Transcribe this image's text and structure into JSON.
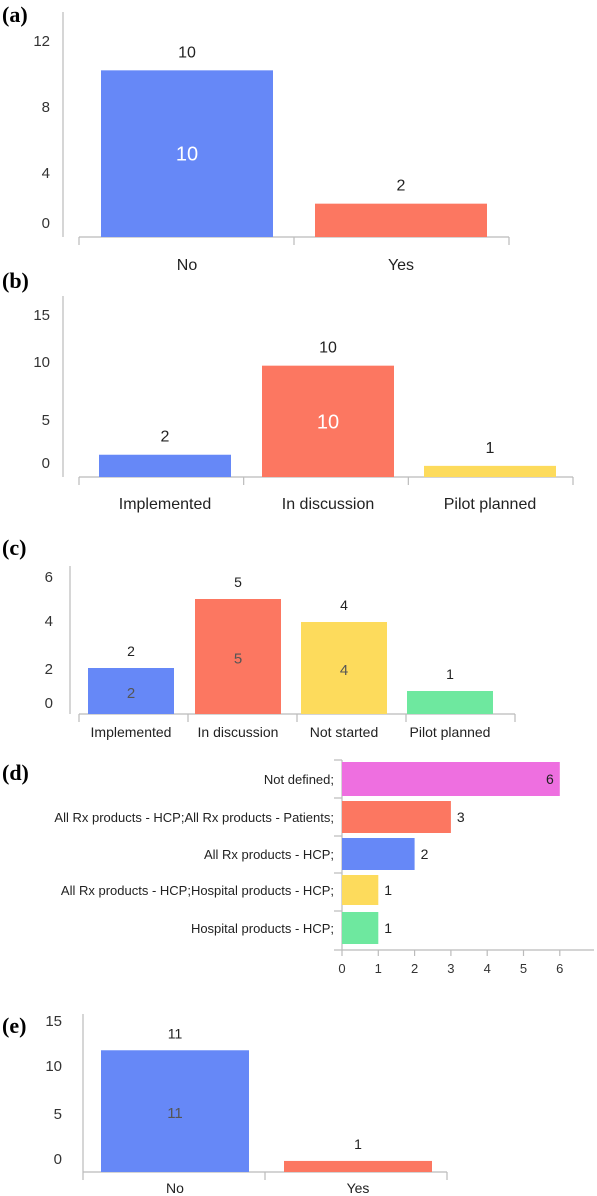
{
  "chart_data": [
    {
      "panel": "(a)",
      "type": "bar",
      "categories": [
        "No",
        "Yes"
      ],
      "values": [
        10,
        2
      ],
      "inner_labels": [
        "10",
        ""
      ],
      "colors": [
        "#6688f7",
        "#fc7761"
      ],
      "ticks": [
        "0",
        "4",
        "8",
        "12"
      ],
      "ylim": [
        0,
        12
      ],
      "grid": false,
      "legend": "none"
    },
    {
      "panel": "(b)",
      "type": "bar",
      "categories": [
        "Implemented",
        "In discussion",
        "Pilot planned"
      ],
      "values": [
        2,
        10,
        1
      ],
      "inner_labels": [
        "",
        "10",
        ""
      ],
      "colors": [
        "#6688f7",
        "#fc7761",
        "#fddb5c"
      ],
      "ticks": [
        "0",
        "5",
        "10",
        "15"
      ],
      "ylim": [
        0,
        15
      ],
      "grid": false,
      "legend": "none"
    },
    {
      "panel": "(c)",
      "type": "bar",
      "categories": [
        "Implemented",
        "In discussion",
        "Not started",
        "Pilot planned"
      ],
      "values": [
        2,
        5,
        4,
        1
      ],
      "inner_labels": [
        "2",
        "5",
        "4",
        ""
      ],
      "colors": [
        "#6688f7",
        "#fc7761",
        "#fddb5c",
        "#6ee89f"
      ],
      "ticks": [
        "0",
        "2",
        "4",
        "6"
      ],
      "ylim": [
        0,
        6
      ],
      "grid": false,
      "legend": "none"
    },
    {
      "panel": "(d)",
      "type": "bar",
      "orientation": "horizontal",
      "categories": [
        "Not defined;",
        "All Rx products - HCP;All Rx products - Patients;",
        "All Rx products - HCP;",
        "All Rx products - HCP;Hospital products - HCP;",
        "Hospital products - HCP;"
      ],
      "values": [
        6,
        3,
        2,
        1,
        1
      ],
      "colors": [
        "#ee6fe0",
        "#fc7761",
        "#6688f7",
        "#fddb5c",
        "#6ee89f"
      ],
      "ticks": [
        "0",
        "1",
        "2",
        "3",
        "4",
        "5",
        "6"
      ],
      "xlim": [
        0,
        7
      ],
      "grid": false,
      "legend": "none"
    },
    {
      "panel": "(e)",
      "type": "bar",
      "categories": [
        "No",
        "Yes"
      ],
      "values": [
        11,
        1
      ],
      "inner_labels": [
        "11",
        ""
      ],
      "colors": [
        "#6688f7",
        "#fc7761"
      ],
      "ticks": [
        "0",
        "5",
        "10",
        "15"
      ],
      "ylim": [
        0,
        15
      ],
      "grid": false,
      "legend": "none"
    }
  ]
}
